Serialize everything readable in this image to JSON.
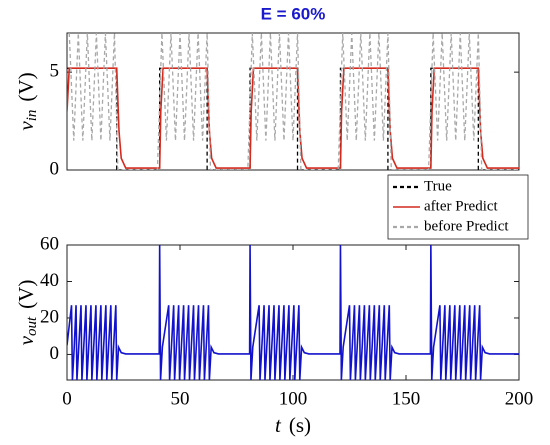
{
  "chart_data": [
    {
      "type": "line",
      "title": "E = 60%",
      "ylabel": {
        "symbol": "v",
        "subscript": "in",
        "unit": "(V)"
      },
      "xlim": [
        0,
        200
      ],
      "ylim": [
        0,
        7
      ],
      "yticks": [
        0,
        5
      ],
      "legend": "lower right",
      "series": [
        {
          "name": "True",
          "color": "#000000",
          "dash": true,
          "x": [
            0,
            22,
            22,
            41,
            41,
            62,
            62,
            81,
            81,
            102,
            102,
            121,
            121,
            142,
            142,
            161,
            161,
            182,
            182,
            200
          ],
          "values": [
            5.2,
            5.2,
            0,
            0,
            5.2,
            5.2,
            0,
            0,
            5.2,
            5.2,
            0,
            0,
            5.2,
            5.2,
            0,
            0,
            5.2,
            5.2,
            0,
            0
          ]
        },
        {
          "name": "after Predict",
          "color": "#d42a1e",
          "dash": false,
          "x": [
            0,
            1,
            22,
            23,
            24,
            26,
            41,
            41.5,
            42.5,
            62,
            63,
            64,
            66,
            81,
            81.5,
            82.5,
            102,
            103,
            104,
            106,
            121,
            121.5,
            122.5,
            142,
            143,
            144,
            146,
            161,
            161.5,
            162.5,
            182,
            183,
            184,
            186,
            200
          ],
          "values": [
            3,
            5.2,
            5.2,
            2,
            0.6,
            0.1,
            0.1,
            3,
            5.2,
            5.2,
            2,
            0.6,
            0.1,
            0.1,
            3,
            5.2,
            5.2,
            2,
            0.6,
            0.1,
            0.1,
            3,
            5.2,
            5.2,
            2,
            0.6,
            0.1,
            0.1,
            3,
            5.2,
            5.2,
            2,
            0.6,
            0.1,
            0.1
          ]
        },
        {
          "name": "before Predict",
          "color": "#a8a8a8",
          "dash": true,
          "x": [
            1,
            3,
            5,
            7,
            9,
            11,
            13,
            15,
            17,
            19,
            21,
            22.5,
            40,
            42,
            44,
            46,
            48,
            50,
            52,
            54,
            56,
            58,
            60,
            62,
            63.5,
            80,
            82,
            84,
            86,
            88,
            90,
            92,
            94,
            96,
            98,
            100,
            102,
            103.5,
            120,
            122,
            124,
            126,
            128,
            130,
            132,
            134,
            136,
            138,
            140,
            142,
            143.5,
            160,
            162,
            164,
            166,
            168,
            170,
            172,
            174,
            176,
            178,
            180,
            182,
            183.5,
            200
          ],
          "values": [
            7,
            1.5,
            7,
            1.5,
            7,
            1.5,
            7,
            1.5,
            7,
            1.5,
            7,
            0,
            0,
            7,
            1.5,
            7,
            1.5,
            7,
            1.5,
            7,
            1.5,
            7,
            1.5,
            7,
            0,
            0,
            7,
            1.5,
            7,
            1.5,
            7,
            1.5,
            7,
            1.5,
            7,
            1.5,
            7,
            0,
            0,
            7,
            1.5,
            7,
            1.5,
            7,
            1.5,
            7,
            1.5,
            7,
            1.5,
            7,
            0,
            0,
            7,
            1.5,
            7,
            1.5,
            7,
            1.5,
            7,
            1.5,
            7,
            1.5,
            7,
            0,
            0
          ]
        }
      ]
    },
    {
      "type": "line",
      "ylabel": {
        "symbol": "v",
        "subscript": "out",
        "unit": "(V)"
      },
      "xlabel": {
        "symbol": "t",
        "unit": "(s)"
      },
      "xlim": [
        0,
        200
      ],
      "ylim": [
        -14,
        60
      ],
      "xticks": [
        0,
        50,
        100,
        150,
        200
      ],
      "yticks": [
        0,
        20,
        40,
        60
      ],
      "series": [
        {
          "color": "#1212cc",
          "dash": false,
          "x": [
            0,
            2,
            2.4,
            3.2,
            4,
            4.4,
            5.2,
            6.2,
            6.6,
            7.4,
            8.4,
            8.8,
            9.6,
            10.6,
            11,
            11.8,
            12.8,
            13.2,
            14,
            15,
            15.4,
            16.2,
            17.2,
            17.6,
            18.4,
            19.4,
            19.8,
            20.6,
            21.6,
            22,
            22.8,
            24,
            26,
            40.8,
            41,
            41.4,
            42.2,
            45,
            45.4,
            46.2,
            47.2,
            47.6,
            48.4,
            49.4,
            49.8,
            50.6,
            51.6,
            52,
            52.8,
            53.8,
            54.2,
            55,
            56,
            56.4,
            57.2,
            58.2,
            58.6,
            59.4,
            60.4,
            60.8,
            61.6,
            62.6,
            63,
            63.8,
            65,
            67,
            80.8,
            81,
            81.4,
            82.2,
            85,
            85.4,
            86.2,
            87.2,
            87.6,
            88.4,
            89.4,
            89.8,
            90.6,
            91.6,
            92,
            92.8,
            93.8,
            94.2,
            95,
            96,
            96.4,
            97.2,
            98.2,
            98.6,
            99.4,
            100.4,
            100.8,
            101.6,
            102.6,
            103,
            103.8,
            105,
            107,
            120.8,
            121,
            121.4,
            122.2,
            125,
            125.4,
            126.2,
            127.2,
            127.6,
            128.4,
            129.4,
            129.8,
            130.6,
            131.6,
            132,
            132.8,
            133.8,
            134.2,
            135,
            136,
            136.4,
            137.2,
            138.2,
            138.6,
            139.4,
            140.4,
            140.8,
            141.6,
            142.6,
            143,
            143.8,
            145,
            147,
            160.8,
            161,
            161.4,
            162.2,
            165,
            165.4,
            166.2,
            167.2,
            167.6,
            168.4,
            169.4,
            169.8,
            170.6,
            171.6,
            172,
            172.8,
            173.8,
            174.2,
            175,
            176,
            176.4,
            177.2,
            178.2,
            178.6,
            179.4,
            180.4,
            180.8,
            181.6,
            182.6,
            183,
            183.8,
            185,
            187,
            200
          ],
          "values": [
            5,
            27,
            -14,
            4,
            27,
            -14,
            4,
            27,
            -14,
            4,
            27,
            -14,
            4,
            27,
            -14,
            4,
            27,
            -14,
            4,
            27,
            -14,
            4,
            27,
            -14,
            4,
            27,
            -14,
            4,
            27,
            -14,
            4,
            1,
            0.3,
            0.3,
            60,
            -14,
            4,
            27,
            -14,
            4,
            27,
            -14,
            4,
            27,
            -14,
            4,
            27,
            -14,
            4,
            27,
            -14,
            4,
            27,
            -14,
            4,
            27,
            -14,
            4,
            27,
            -14,
            4,
            27,
            -14,
            4,
            1,
            0.3,
            0.3,
            60,
            -14,
            4,
            27,
            -14,
            4,
            27,
            -14,
            4,
            27,
            -14,
            4,
            27,
            -14,
            4,
            27,
            -14,
            4,
            27,
            -14,
            4,
            27,
            -14,
            4,
            27,
            -14,
            4,
            27,
            -14,
            4,
            1,
            0.3,
            0.3,
            60,
            -14,
            4,
            27,
            -14,
            4,
            27,
            -14,
            4,
            27,
            -14,
            4,
            27,
            -14,
            4,
            27,
            -14,
            4,
            27,
            -14,
            4,
            27,
            -14,
            4,
            27,
            -14,
            4,
            27,
            -14,
            4,
            1,
            0.3,
            0.3,
            60,
            -14,
            4,
            27,
            -14,
            4,
            27,
            -14,
            4,
            27,
            -14,
            4,
            27,
            -14,
            4,
            27,
            -14,
            4,
            27,
            -14,
            4,
            27,
            -14,
            4,
            27,
            -14,
            4,
            27,
            -14,
            4,
            1,
            0.3,
            0.3
          ]
        }
      ]
    }
  ]
}
